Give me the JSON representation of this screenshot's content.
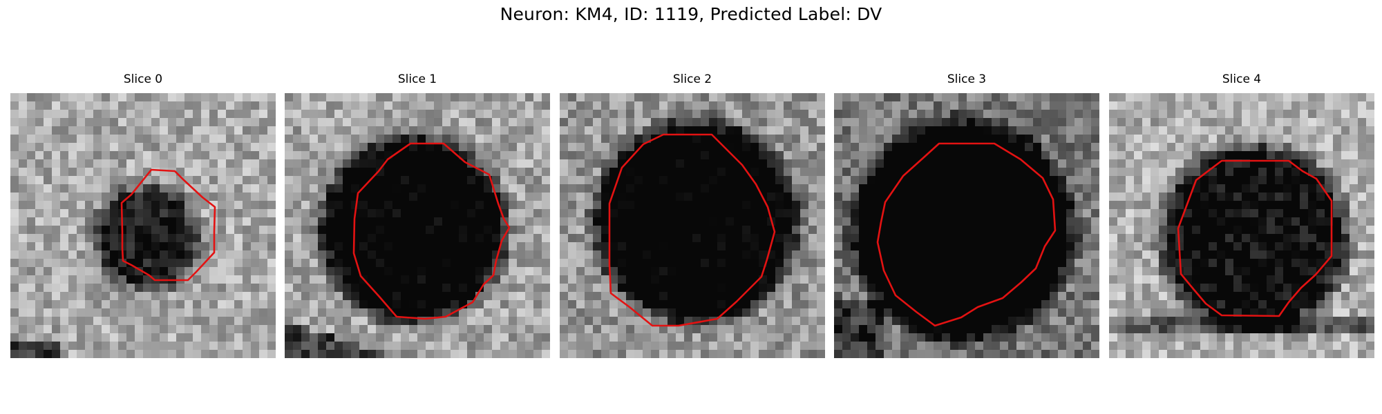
{
  "figure": {
    "suptitle": "Neuron: KM4, ID: 1119, Predicted Label: DV",
    "colors": {
      "contour": "#e31212",
      "background": "#ffffff"
    }
  },
  "slices": [
    {
      "title": "Slice 0"
    },
    {
      "title": "Slice 1"
    },
    {
      "title": "Slice 2"
    },
    {
      "title": "Slice 3"
    },
    {
      "title": "Slice 4"
    }
  ]
}
